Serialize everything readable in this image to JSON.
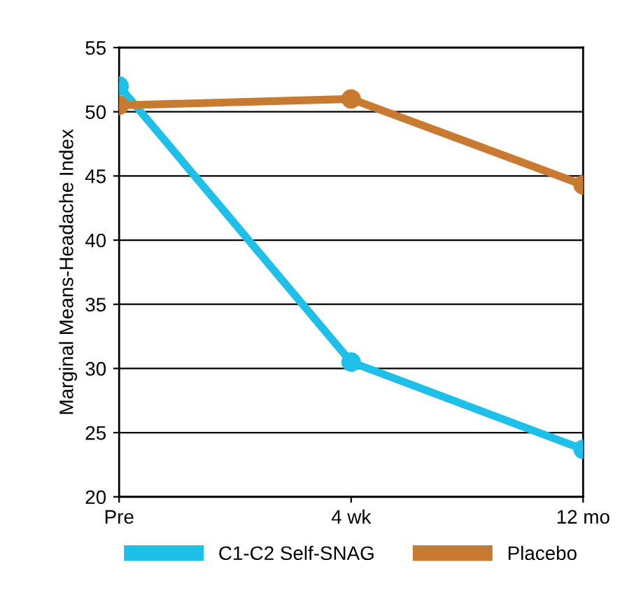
{
  "chart_data": {
    "type": "line",
    "ylabel": "Marginal Means-Headache Index",
    "categories": [
      "Pre",
      "4 wk",
      "12 mo"
    ],
    "series": [
      {
        "name": "C1-C2 Self-SNAG",
        "color": "#1ebfe8",
        "values": [
          52,
          30.5,
          23.7
        ]
      },
      {
        "name": "Placebo",
        "color": "#c87a30",
        "values": [
          50.5,
          51,
          44.3
        ]
      }
    ],
    "ylim": [
      20,
      55
    ],
    "yticks": [
      20,
      25,
      30,
      35,
      40,
      45,
      50,
      55
    ],
    "grid": "y",
    "legend": "bottom",
    "marker": "circle",
    "line_style": "solid"
  }
}
